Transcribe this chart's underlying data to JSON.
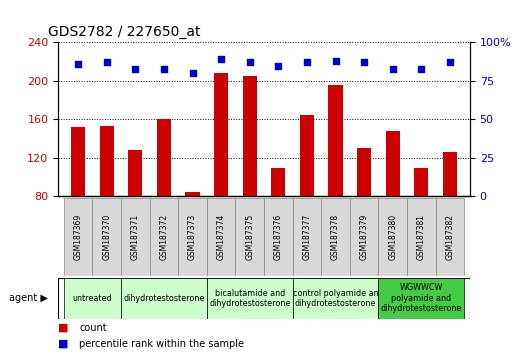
{
  "title": "GDS2782 / 227650_at",
  "samples": [
    "GSM187369",
    "GSM187370",
    "GSM187371",
    "GSM187372",
    "GSM187373",
    "GSM187374",
    "GSM187375",
    "GSM187376",
    "GSM187377",
    "GSM187378",
    "GSM187379",
    "GSM187380",
    "GSM187381",
    "GSM187382"
  ],
  "counts": [
    152,
    153,
    128,
    160,
    85,
    208,
    205,
    110,
    165,
    196,
    130,
    148,
    110,
    126
  ],
  "percentiles": [
    86,
    87,
    83,
    83,
    80,
    89,
    87,
    85,
    87,
    88,
    87,
    83,
    83,
    87
  ],
  "ylim_left": [
    80,
    240
  ],
  "ylim_right": [
    0,
    100
  ],
  "yticks_left": [
    80,
    120,
    160,
    200,
    240
  ],
  "yticks_right": [
    0,
    25,
    50,
    75,
    100
  ],
  "bar_color": "#cc0000",
  "dot_color": "#0000cc",
  "grid_color": "#000000",
  "groups": [
    {
      "label": "untreated",
      "start": 0,
      "end": 1,
      "color": "#ccffcc"
    },
    {
      "label": "dihydrotestosterone",
      "start": 2,
      "end": 4,
      "color": "#ccffcc"
    },
    {
      "label": "bicalutamide and\ndihydrotestosterone",
      "start": 5,
      "end": 7,
      "color": "#ccffcc"
    },
    {
      "label": "control polyamide an\ndihydrotestosterone",
      "start": 8,
      "end": 10,
      "color": "#ccffcc"
    },
    {
      "label": "WGWWCW\npolyamide and\ndihydrotestosterone",
      "start": 11,
      "end": 13,
      "color": "#44cc44"
    }
  ],
  "agent_label": "agent",
  "legend_count_label": "count",
  "legend_pct_label": "percentile rank within the sample",
  "bg_color": "#ffffff",
  "tick_label_color_left": "#cc0000",
  "tick_label_color_right": "#0000cc",
  "sample_box_color": "#d8d8d8",
  "sample_box_border": "#888888"
}
